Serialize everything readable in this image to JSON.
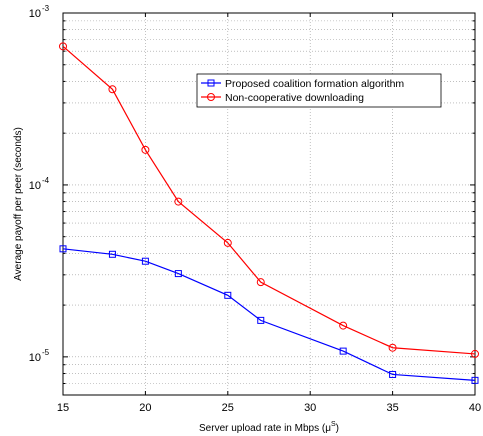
{
  "chart_data": {
    "type": "line",
    "xlabel": "Server upload rate in Mbps  (μ",
    "xlabel_sup": "S",
    "xlabel_close": ")",
    "ylabel": "Average payoff per peer (seconds)",
    "xlim": [
      15,
      40
    ],
    "ylim": [
      6e-06,
      0.001
    ],
    "yscale": "log",
    "grid": true,
    "legend_position": "top-right",
    "x_ticks": [
      "15",
      "20",
      "25",
      "30",
      "35",
      "40"
    ],
    "y_ticks": [
      {
        "base": "10",
        "exp": "-5"
      },
      {
        "base": "10",
        "exp": "-4"
      },
      {
        "base": "10",
        "exp": "-3"
      }
    ],
    "series": [
      {
        "name": "Proposed coalition formation algorithm",
        "color": "#0000ff",
        "marker": "square",
        "x": [
          15,
          18,
          20,
          22,
          25,
          27,
          32,
          35,
          40
        ],
        "y": [
          4.25e-05,
          3.95e-05,
          3.6e-05,
          3.05e-05,
          2.28e-05,
          1.63e-05,
          1.08e-05,
          7.9e-06,
          7.3e-06
        ]
      },
      {
        "name": "Non-cooperative downloading",
        "color": "#ff0000",
        "marker": "circle",
        "x": [
          15,
          18,
          20,
          22,
          25,
          27,
          32,
          35,
          40
        ],
        "y": [
          0.00064,
          0.00036,
          0.00016,
          8e-05,
          4.6e-05,
          2.72e-05,
          1.52e-05,
          1.13e-05,
          1.04e-05
        ]
      }
    ]
  }
}
